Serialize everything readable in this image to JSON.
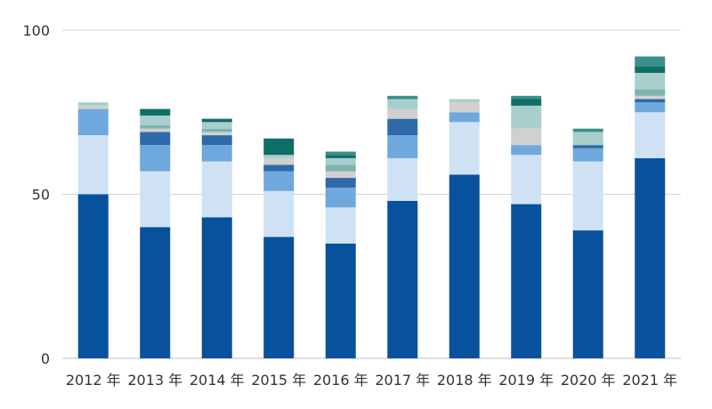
{
  "chart_data": {
    "type": "bar",
    "stacked": true,
    "title": "",
    "xlabel": "",
    "ylabel": "",
    "ylim": [
      0,
      100
    ],
    "yticks": [
      0,
      50,
      100
    ],
    "grid": true,
    "legend": "none",
    "categories": [
      "2012 年",
      "2013 年",
      "2014 年",
      "2015 年",
      "2016 年",
      "2017 年",
      "2018 年",
      "2019 年",
      "2020 年",
      "2021 年"
    ],
    "series": [
      {
        "color": "#08519c",
        "values": [
          50,
          40,
          43,
          37,
          35,
          48,
          56,
          47,
          39,
          61
        ]
      },
      {
        "color": "#cfe2f3",
        "values": [
          18,
          17,
          17,
          14,
          11,
          13,
          16,
          15,
          21,
          14
        ]
      },
      {
        "color": "#6fa8dc",
        "values": [
          8,
          8,
          5,
          6,
          6,
          7,
          3,
          3,
          4,
          3
        ]
      },
      {
        "color": "#2f6aa8",
        "values": [
          0,
          4,
          3,
          2,
          3,
          5,
          0,
          0,
          1,
          1
        ]
      },
      {
        "color": "#d0d0d0",
        "values": [
          1,
          1,
          1,
          2,
          2,
          3,
          3,
          5,
          0,
          1
        ]
      },
      {
        "color": "#7fb3ae",
        "values": [
          0,
          1,
          1,
          0,
          2,
          0,
          0,
          0,
          0,
          2
        ]
      },
      {
        "color": "#a8cfcc",
        "values": [
          1,
          3,
          2,
          1,
          2,
          3,
          1,
          7,
          4,
          5
        ]
      },
      {
        "color": "#0f6e66",
        "values": [
          0,
          2,
          1,
          5,
          1,
          0,
          0,
          2,
          0,
          2
        ]
      },
      {
        "color": "#3a8f8a",
        "values": [
          0,
          0,
          0,
          0,
          1,
          1,
          0,
          1,
          1,
          3
        ]
      }
    ]
  }
}
